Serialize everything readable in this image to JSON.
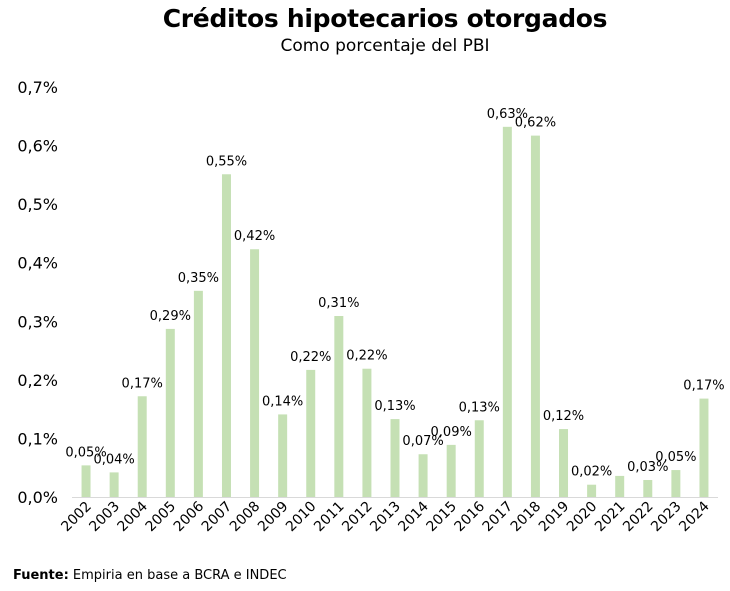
{
  "chart_data": {
    "type": "bar",
    "title": "Créditos hipotecarios otorgados",
    "subtitle": "Como porcentaje del PBI",
    "categories": [
      "2002",
      "2003",
      "2004",
      "2005",
      "2006",
      "2007",
      "2008",
      "2009",
      "2010",
      "2011",
      "2012",
      "2013",
      "2014",
      "2015",
      "2016",
      "2017",
      "2018",
      "2019",
      "2020",
      "2021",
      "2022",
      "2023",
      "2024"
    ],
    "values": [
      0.054,
      0.042,
      0.172,
      0.287,
      0.352,
      0.551,
      0.423,
      0.141,
      0.217,
      0.309,
      0.219,
      0.133,
      0.073,
      0.089,
      0.131,
      0.632,
      0.617,
      0.116,
      0.021,
      0.036,
      0.029,
      0.046,
      0.168
    ],
    "data_labels": [
      "0,05%",
      "0,04%",
      "0,17%",
      "0,29%",
      "0,35%",
      "0,55%",
      "0,42%",
      "0,14%",
      "0,22%",
      "0,31%",
      "0,22%",
      "0,13%",
      "0,07%",
      "0,09%",
      "0,13%",
      "0,63%",
      "0,62%",
      "0,12%",
      "0,02%",
      "",
      "0,03%",
      "0,05%",
      "0,17%"
    ],
    "ylim": [
      0,
      0.7
    ],
    "yticks": [
      "0,0%",
      "0,1%",
      "0,2%",
      "0,3%",
      "0,4%",
      "0,5%",
      "0,6%",
      "0,7%"
    ],
    "xlabel": "",
    "ylabel": "",
    "grid": false,
    "bar_color": "#c5e0b4"
  },
  "footer": {
    "source_label": "Fuente:",
    "source_text": " Empiria en base a BCRA e INDEC"
  }
}
